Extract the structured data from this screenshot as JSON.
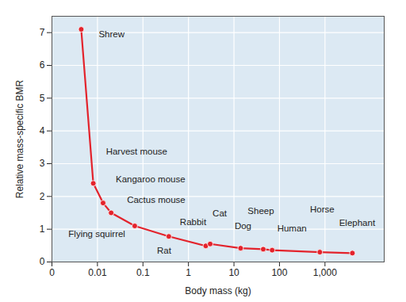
{
  "chart_data": {
    "type": "line",
    "x_label": "Body mass (kg)",
    "y_label": "Relative mass-specific BMR",
    "labels": [
      "Shrew",
      "Harvest mouse",
      "Kangaroo mouse",
      "Cactus mouse",
      "Flying squirrel",
      "Rat",
      "Rabbit",
      "Cat",
      "Dog",
      "Sheep",
      "Human",
      "Horse",
      "Elephant"
    ],
    "x": [
      0.0044,
      0.0081,
      0.0133,
      0.02,
      0.066,
      0.37,
      2.4,
      3.0,
      14,
      44,
      69,
      770,
      4000
    ],
    "values": [
      7.1,
      2.4,
      1.8,
      1.5,
      1.1,
      0.78,
      0.49,
      0.55,
      0.42,
      0.39,
      0.36,
      0.3,
      0.27
    ],
    "xlim": [
      0.001,
      20000
    ],
    "ylim": [
      0,
      7.5
    ],
    "xticks": [
      {
        "value": 0.001,
        "label": "0"
      },
      0.01,
      0.1,
      1,
      10,
      100,
      {
        "value": 1000,
        "label": "1,000"
      }
    ],
    "yticks": [
      0,
      1,
      2,
      3,
      4,
      5,
      6,
      7
    ],
    "log": "x",
    "grid": true,
    "color": "#e3232c",
    "marker": "circle"
  }
}
